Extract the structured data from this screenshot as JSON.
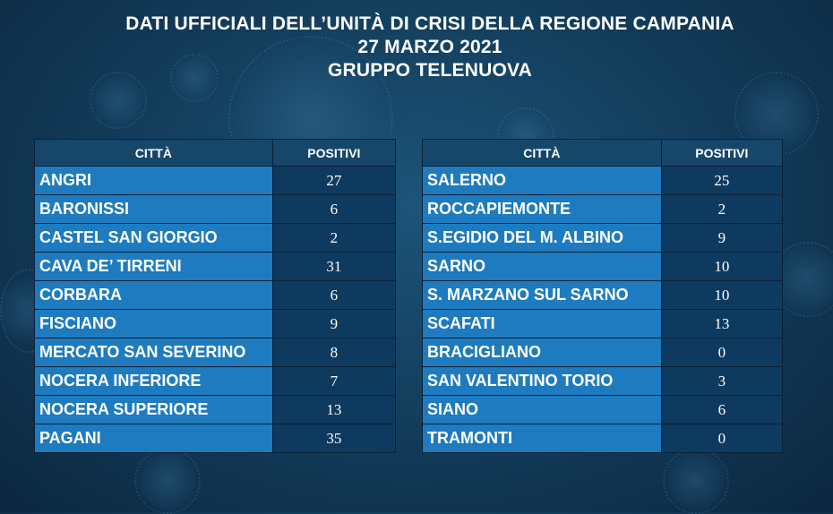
{
  "header": {
    "line1": "DATI UFFICIALI DELL’UNITÀ DI CRISI DELLA REGIONE CAMPANIA",
    "line2": "27 MARZO 2021",
    "line3": "GRUPPO TELENUOVA"
  },
  "tables": {
    "left": {
      "col_city": "CITTÀ",
      "col_positivi": "POSITIVI",
      "rows": [
        {
          "city": "ANGRI",
          "positivi": "27"
        },
        {
          "city": "BARONISSI",
          "positivi": "6"
        },
        {
          "city": "CASTEL SAN GIORGIO",
          "positivi": "2"
        },
        {
          "city": "CAVA DE’ TIRRENI",
          "positivi": "31"
        },
        {
          "city": "CORBARA",
          "positivi": "6"
        },
        {
          "city": "FISCIANO",
          "positivi": "9"
        },
        {
          "city": "MERCATO SAN SEVERINO",
          "positivi": "8"
        },
        {
          "city": "NOCERA INFERIORE",
          "positivi": "7"
        },
        {
          "city": "NOCERA SUPERIORE",
          "positivi": "13"
        },
        {
          "city": "PAGANI",
          "positivi": "35"
        }
      ]
    },
    "right": {
      "col_city": "CITTÀ",
      "col_positivi": "POSITIVI",
      "rows": [
        {
          "city": "SALERNO",
          "positivi": "25"
        },
        {
          "city": "ROCCAPIEMONTE",
          "positivi": "2"
        },
        {
          "city": "S.EGIDIO DEL M. ALBINO",
          "positivi": "9"
        },
        {
          "city": "SARNO",
          "positivi": "10"
        },
        {
          "city": "S. MARZANO SUL SARNO",
          "positivi": "10"
        },
        {
          "city": "SCAFATI",
          "positivi": "13"
        },
        {
          "city": "BRACIGLIANO",
          "positivi": "0"
        },
        {
          "city": "SAN VALENTINO TORIO",
          "positivi": "3"
        },
        {
          "city": "SIANO",
          "positivi": "6"
        },
        {
          "city": "TRAMONTI",
          "positivi": "0"
        }
      ]
    }
  }
}
